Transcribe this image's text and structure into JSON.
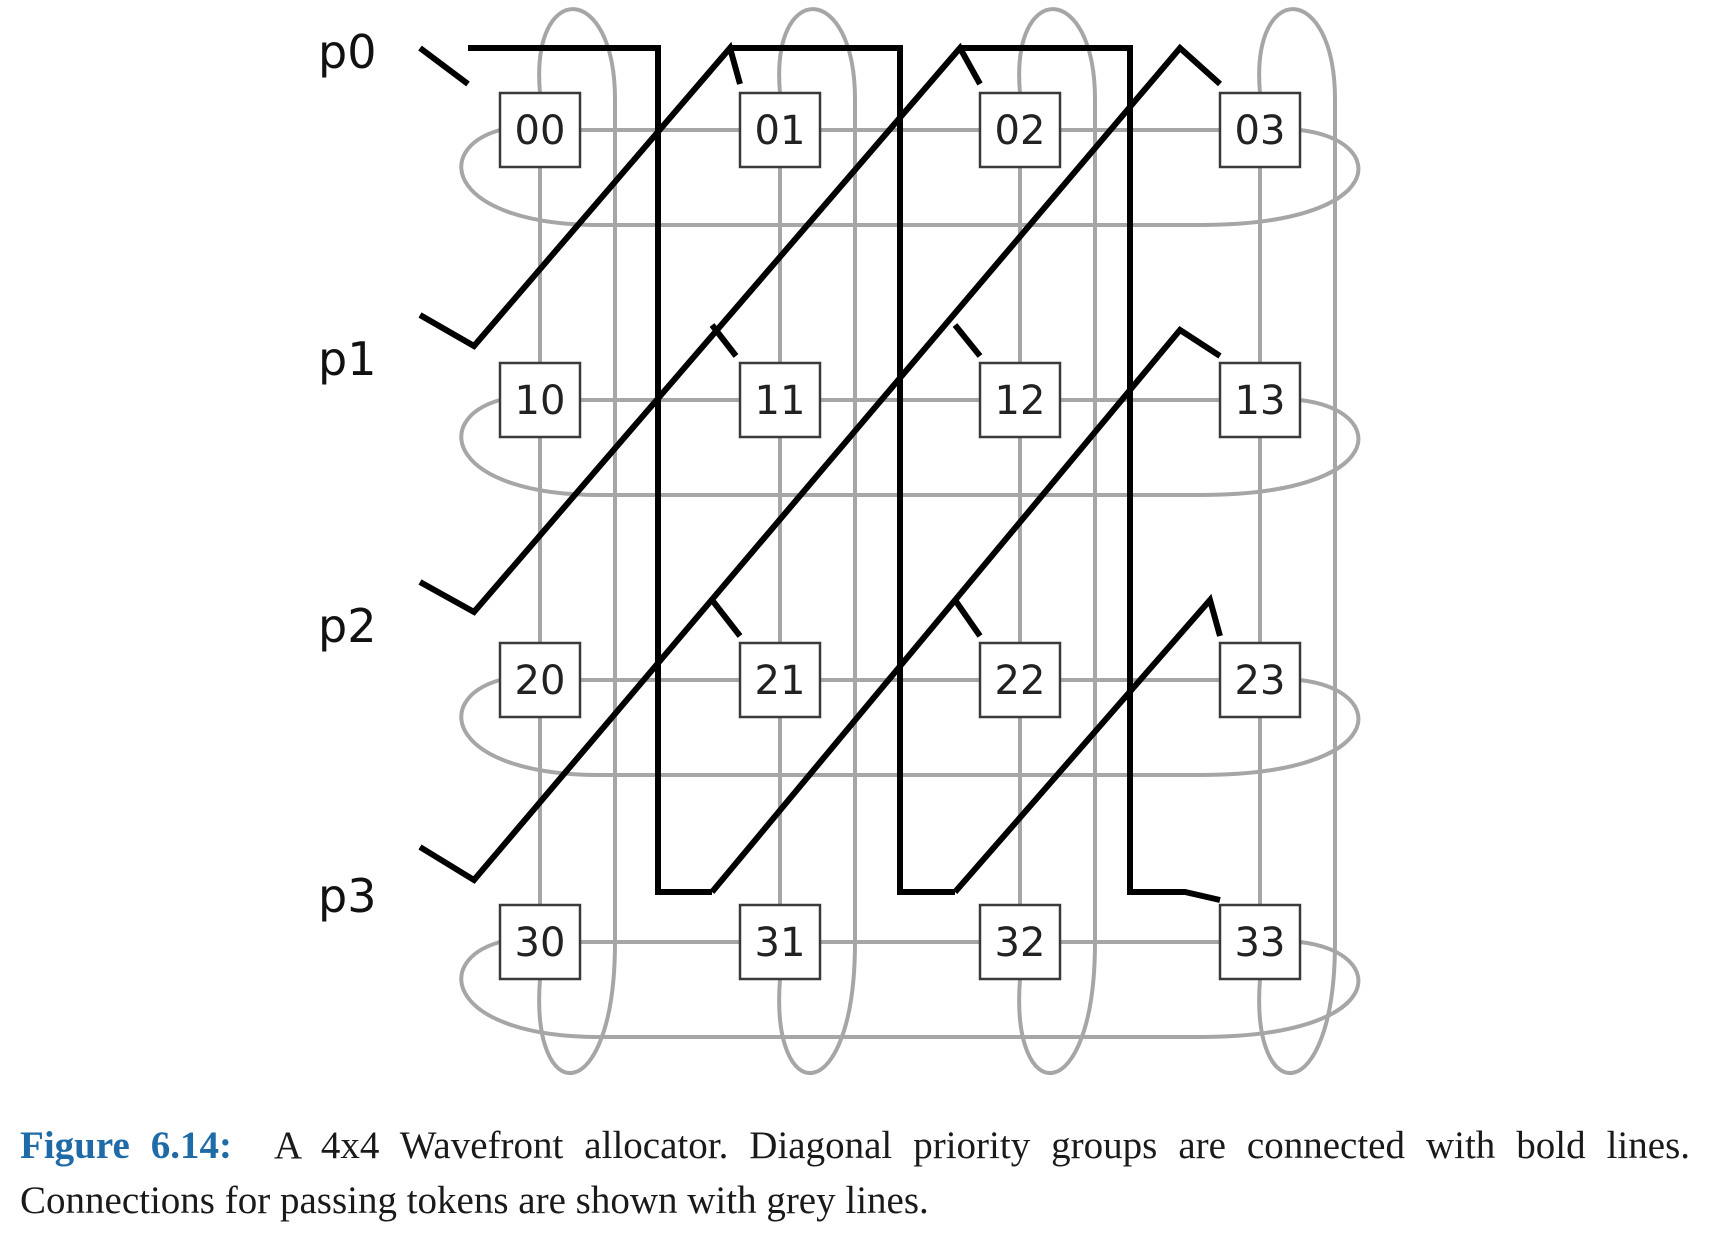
{
  "diagram": {
    "port_labels": [
      "p0",
      "p1",
      "p2",
      "p3"
    ],
    "cells": [
      [
        "00",
        "01",
        "02",
        "03"
      ],
      [
        "10",
        "11",
        "12",
        "13"
      ],
      [
        "20",
        "21",
        "22",
        "23"
      ],
      [
        "30",
        "31",
        "32",
        "33"
      ]
    ],
    "colors": {
      "bold_lines": "#000000",
      "grey_lines": "#a6a6a6",
      "caption_label": "#1f6ba8"
    }
  },
  "caption": {
    "label": "Figure 6.14:",
    "text": "A 4x4 Wavefront allocator. Diagonal priority groups are connected with bold lines. Connections for passing tokens are shown with grey lines."
  }
}
